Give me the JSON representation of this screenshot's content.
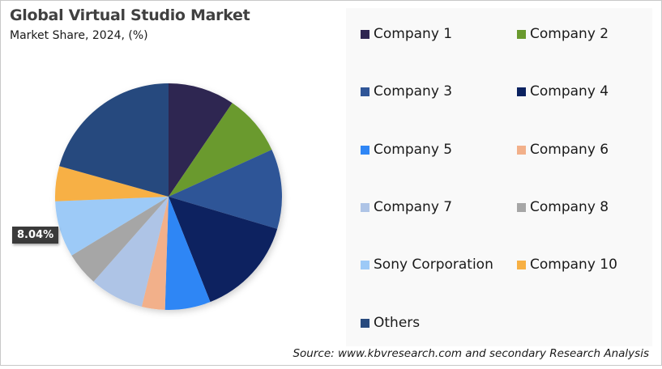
{
  "header": {
    "title": "Global Virtual Studio Market",
    "subtitle": "Market Share, 2024, (%)"
  },
  "data_label": {
    "text": "8.04%",
    "series": "Sony Corporation"
  },
  "source": "Source: www.kbvresearch.com and secondary Research Analysis",
  "legend": [
    {
      "label": "Company 1",
      "color": "#2e2551"
    },
    {
      "label": "Company 2",
      "color": "#6a9a2e"
    },
    {
      "label": "Company 3",
      "color": "#2f5597"
    },
    {
      "label": "Company 4",
      "color": "#0b2260"
    },
    {
      "label": "Company 5",
      "color": "#2f86f5"
    },
    {
      "label": "Company 6",
      "color": "#f2b08a"
    },
    {
      "label": "Company 7",
      "color": "#aec4e6"
    },
    {
      "label": "Company 8",
      "color": "#a6a6a6"
    },
    {
      "label": "Sony Corporation",
      "color": "#9dcaf7"
    },
    {
      "label": "Company 10",
      "color": "#f7b044"
    },
    {
      "label": "Others",
      "color": "#284a7e"
    }
  ],
  "chart_data": {
    "type": "pie",
    "title": "Global Virtual Studio Market",
    "subtitle": "Market Share, 2024, (%)",
    "categories": [
      "Company 1",
      "Company 2",
      "Company 3",
      "Company 4",
      "Company 5",
      "Company 6",
      "Company 7",
      "Company 8",
      "Sony Corporation",
      "Company 10",
      "Others"
    ],
    "values": [
      9.5,
      8.7,
      11.4,
      14.4,
      6.5,
      3.3,
      7.7,
      4.8,
      8.04,
      5.0,
      20.66
    ],
    "colors": [
      "#2e2551",
      "#6a9a2e",
      "#2f5597",
      "#0b2260",
      "#2f86f5",
      "#f2b08a",
      "#aec4e6",
      "#a6a6a6",
      "#9dcaf7",
      "#f7b044",
      "#284a7e"
    ],
    "start_angle_deg": 0,
    "direction": "clockwise",
    "annotations": [
      {
        "series": "Sony Corporation",
        "text": "8.04%"
      }
    ],
    "legend_position": "right",
    "source": "Source: www.kbvresearch.com and secondary Research Analysis"
  }
}
